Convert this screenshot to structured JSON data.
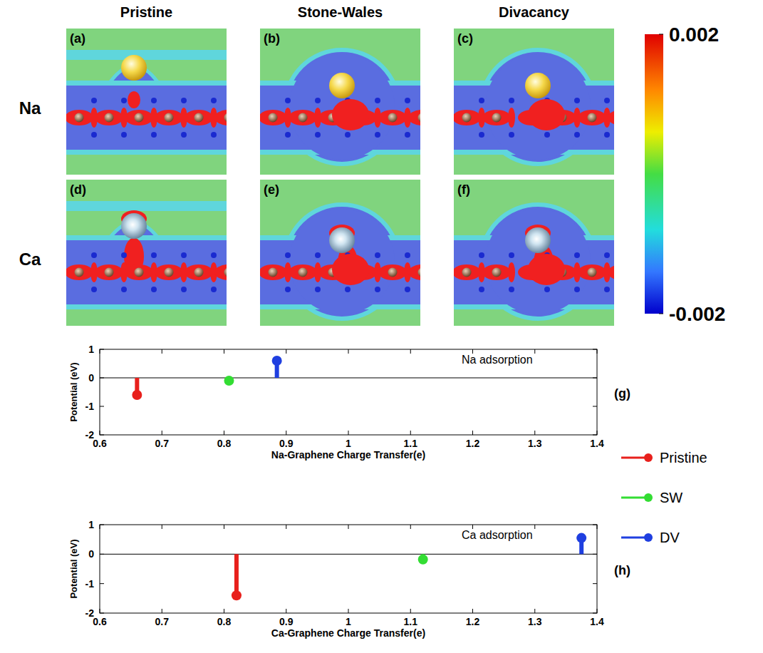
{
  "figure": {
    "columns": [
      "Pristine",
      "Stone-Wales",
      "Divacancy"
    ],
    "rows": [
      "Na",
      "Ca"
    ],
    "panel_labels": [
      "(a)",
      "(b)",
      "(c)",
      "(d)",
      "(e)",
      "(f)"
    ],
    "colorbar": {
      "range": [
        -0.002,
        0.002
      ],
      "ticks": [
        -0.002,
        0.002
      ]
    }
  },
  "chart_data": [
    {
      "type": "stem",
      "annotation": "Na adsorption",
      "panel_label": "(g)",
      "x_label": "Na-Graphene Charge Transfer(e)",
      "y_label": "Potential (eV)",
      "xlim": [
        0.6,
        1.4
      ],
      "xticks": [
        0.6,
        0.7,
        0.8,
        0.9,
        1,
        1.1,
        1.2,
        1.3,
        1.4
      ],
      "ylim": [
        -2,
        1
      ],
      "yticks": [
        -2,
        -1,
        0,
        1
      ],
      "legend": "right",
      "series": [
        {
          "name": "Pristine",
          "color": "#e8201c",
          "x": [
            0.66
          ],
          "values": [
            -0.6
          ]
        },
        {
          "name": "SW",
          "color": "#33dd33",
          "x": [
            0.808
          ],
          "values": [
            -0.1
          ]
        },
        {
          "name": "DV",
          "color": "#1f3fe0",
          "x": [
            0.885
          ],
          "values": [
            0.6
          ]
        }
      ]
    },
    {
      "type": "stem",
      "annotation": "Ca adsorption",
      "panel_label": "(h)",
      "x_label": "Ca-Graphene Charge Transfer(e)",
      "y_label": "Potential (eV)",
      "xlim": [
        0.6,
        1.4
      ],
      "xticks": [
        0.6,
        0.7,
        0.8,
        0.9,
        1,
        1.1,
        1.2,
        1.3,
        1.4
      ],
      "ylim": [
        -2,
        1
      ],
      "yticks": [
        -2,
        -1,
        0,
        1
      ],
      "series": [
        {
          "color": "#e8201c",
          "x": [
            0.82
          ],
          "values": [
            -1.4
          ]
        },
        {
          "color": "#33dd33",
          "x": [
            1.12
          ],
          "values": [
            -0.18
          ]
        },
        {
          "color": "#1f3fe0",
          "x": [
            1.375
          ],
          "values": [
            0.55
          ]
        }
      ]
    }
  ]
}
